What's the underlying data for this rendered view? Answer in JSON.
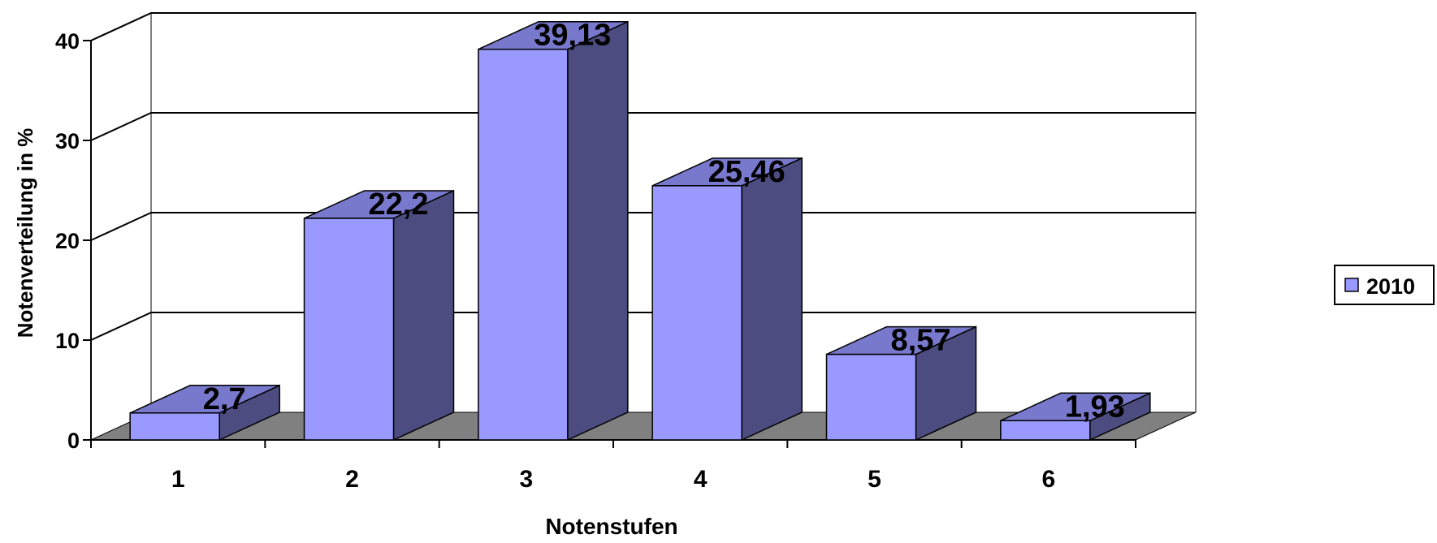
{
  "chart_data": {
    "type": "bar",
    "categories": [
      "1",
      "2",
      "3",
      "4",
      "5",
      "6"
    ],
    "series": [
      {
        "name": "2010",
        "values": [
          2.7,
          22.2,
          39.13,
          25.46,
          8.57,
          1.93
        ]
      }
    ],
    "data_labels": [
      "2,7",
      "22,2",
      "39,13",
      "25,46",
      "8,57",
      "1,93"
    ],
    "y_ticks": [
      "0",
      "10",
      "20",
      "30",
      "40"
    ],
    "ylim": [
      0,
      40
    ],
    "xlabel": "Notenstufen",
    "ylabel": "Notenverteilung in %",
    "legend_position": "right",
    "grid": true,
    "three_d": true,
    "colors": {
      "bar_front": "#9999FF",
      "bar_top": "#7878CC",
      "bar_side": "#4C4C80",
      "floor": "#808080",
      "grid_line": "#000000",
      "wall_edge": "#808080"
    }
  }
}
